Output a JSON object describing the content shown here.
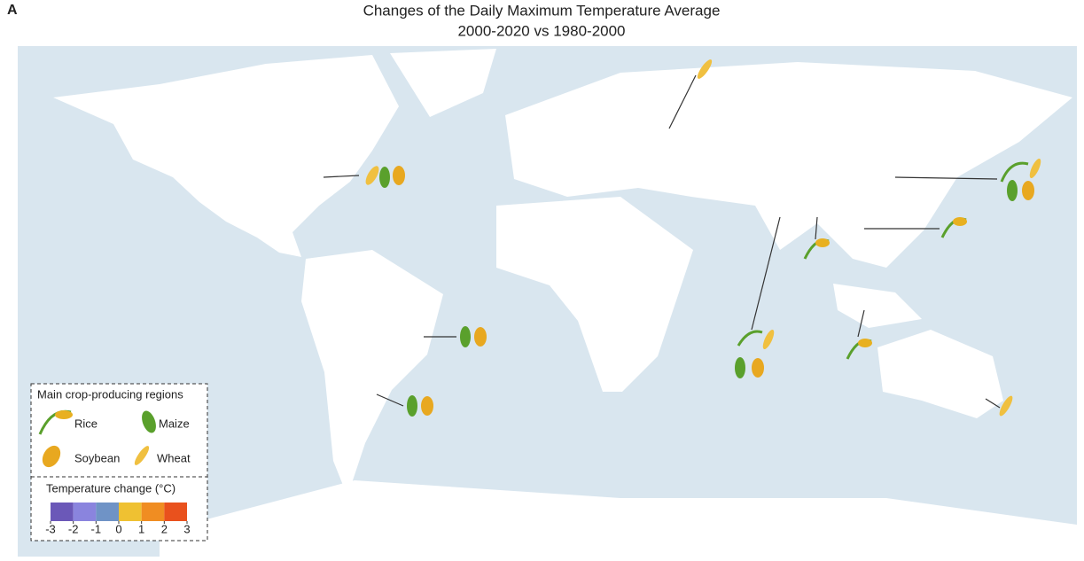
{
  "panel_label": "A",
  "title": [
    "Changes of the Daily Maximum Temperature Average",
    "2000-2020 vs 1980-2000"
  ],
  "legend": {
    "title": "Main crop-producing regions",
    "crops": [
      "Rice",
      "Maize",
      "Soybean",
      "Wheat"
    ],
    "colorbar": {
      "title": "Temperature change (°C)",
      "ticks": [
        -3,
        -2,
        -1,
        0,
        1,
        2,
        3
      ],
      "colors": [
        "#6b58b8",
        "#8a84de",
        "#6f93c6",
        "#efc132",
        "#f08d22",
        "#e9511d"
      ]
    }
  }
}
